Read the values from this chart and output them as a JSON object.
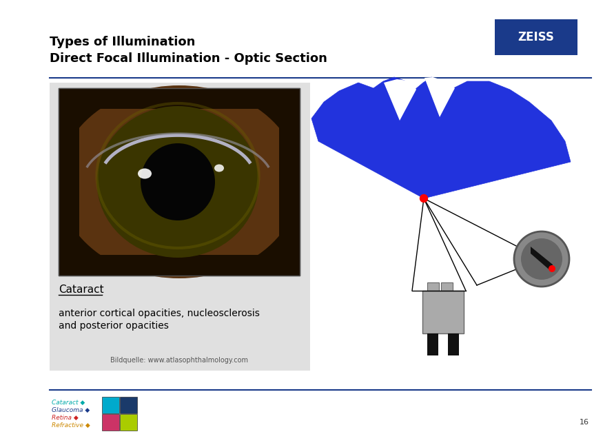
{
  "title_line1": "Types of Illumination",
  "title_line2": "Direct Focal Illumination - Optic Section",
  "subtitle_cataract": "Cataract",
  "desc_line1": "anterior cortical opacities, nucleosclerosis",
  "desc_line2": "and posterior opacities",
  "source_text": "Bildquelle: www.atlasophthalmology.com",
  "page_num": "16",
  "bg_color": "#ffffff",
  "title_color": "#000000",
  "header_line_color": "#1a3a8a",
  "footer_line_color": "#1a3a8a",
  "blue_shape_color": "#2233dd",
  "zeiss_bg": "#1a3a8a",
  "content_bg": "#e0e0e0",
  "footer_labels": [
    "Cataract ◆",
    "Glaucoma ◆",
    "Retina ◆",
    "Refractive ◆"
  ],
  "footer_text_colors": [
    "#00aaaa",
    "#1a3a8a",
    "#cc2222",
    "#cc8800"
  ],
  "sq_colors": [
    [
      "#00aacc",
      "#1a3a6a"
    ],
    [
      "#cc3366",
      "#aacc00"
    ]
  ]
}
